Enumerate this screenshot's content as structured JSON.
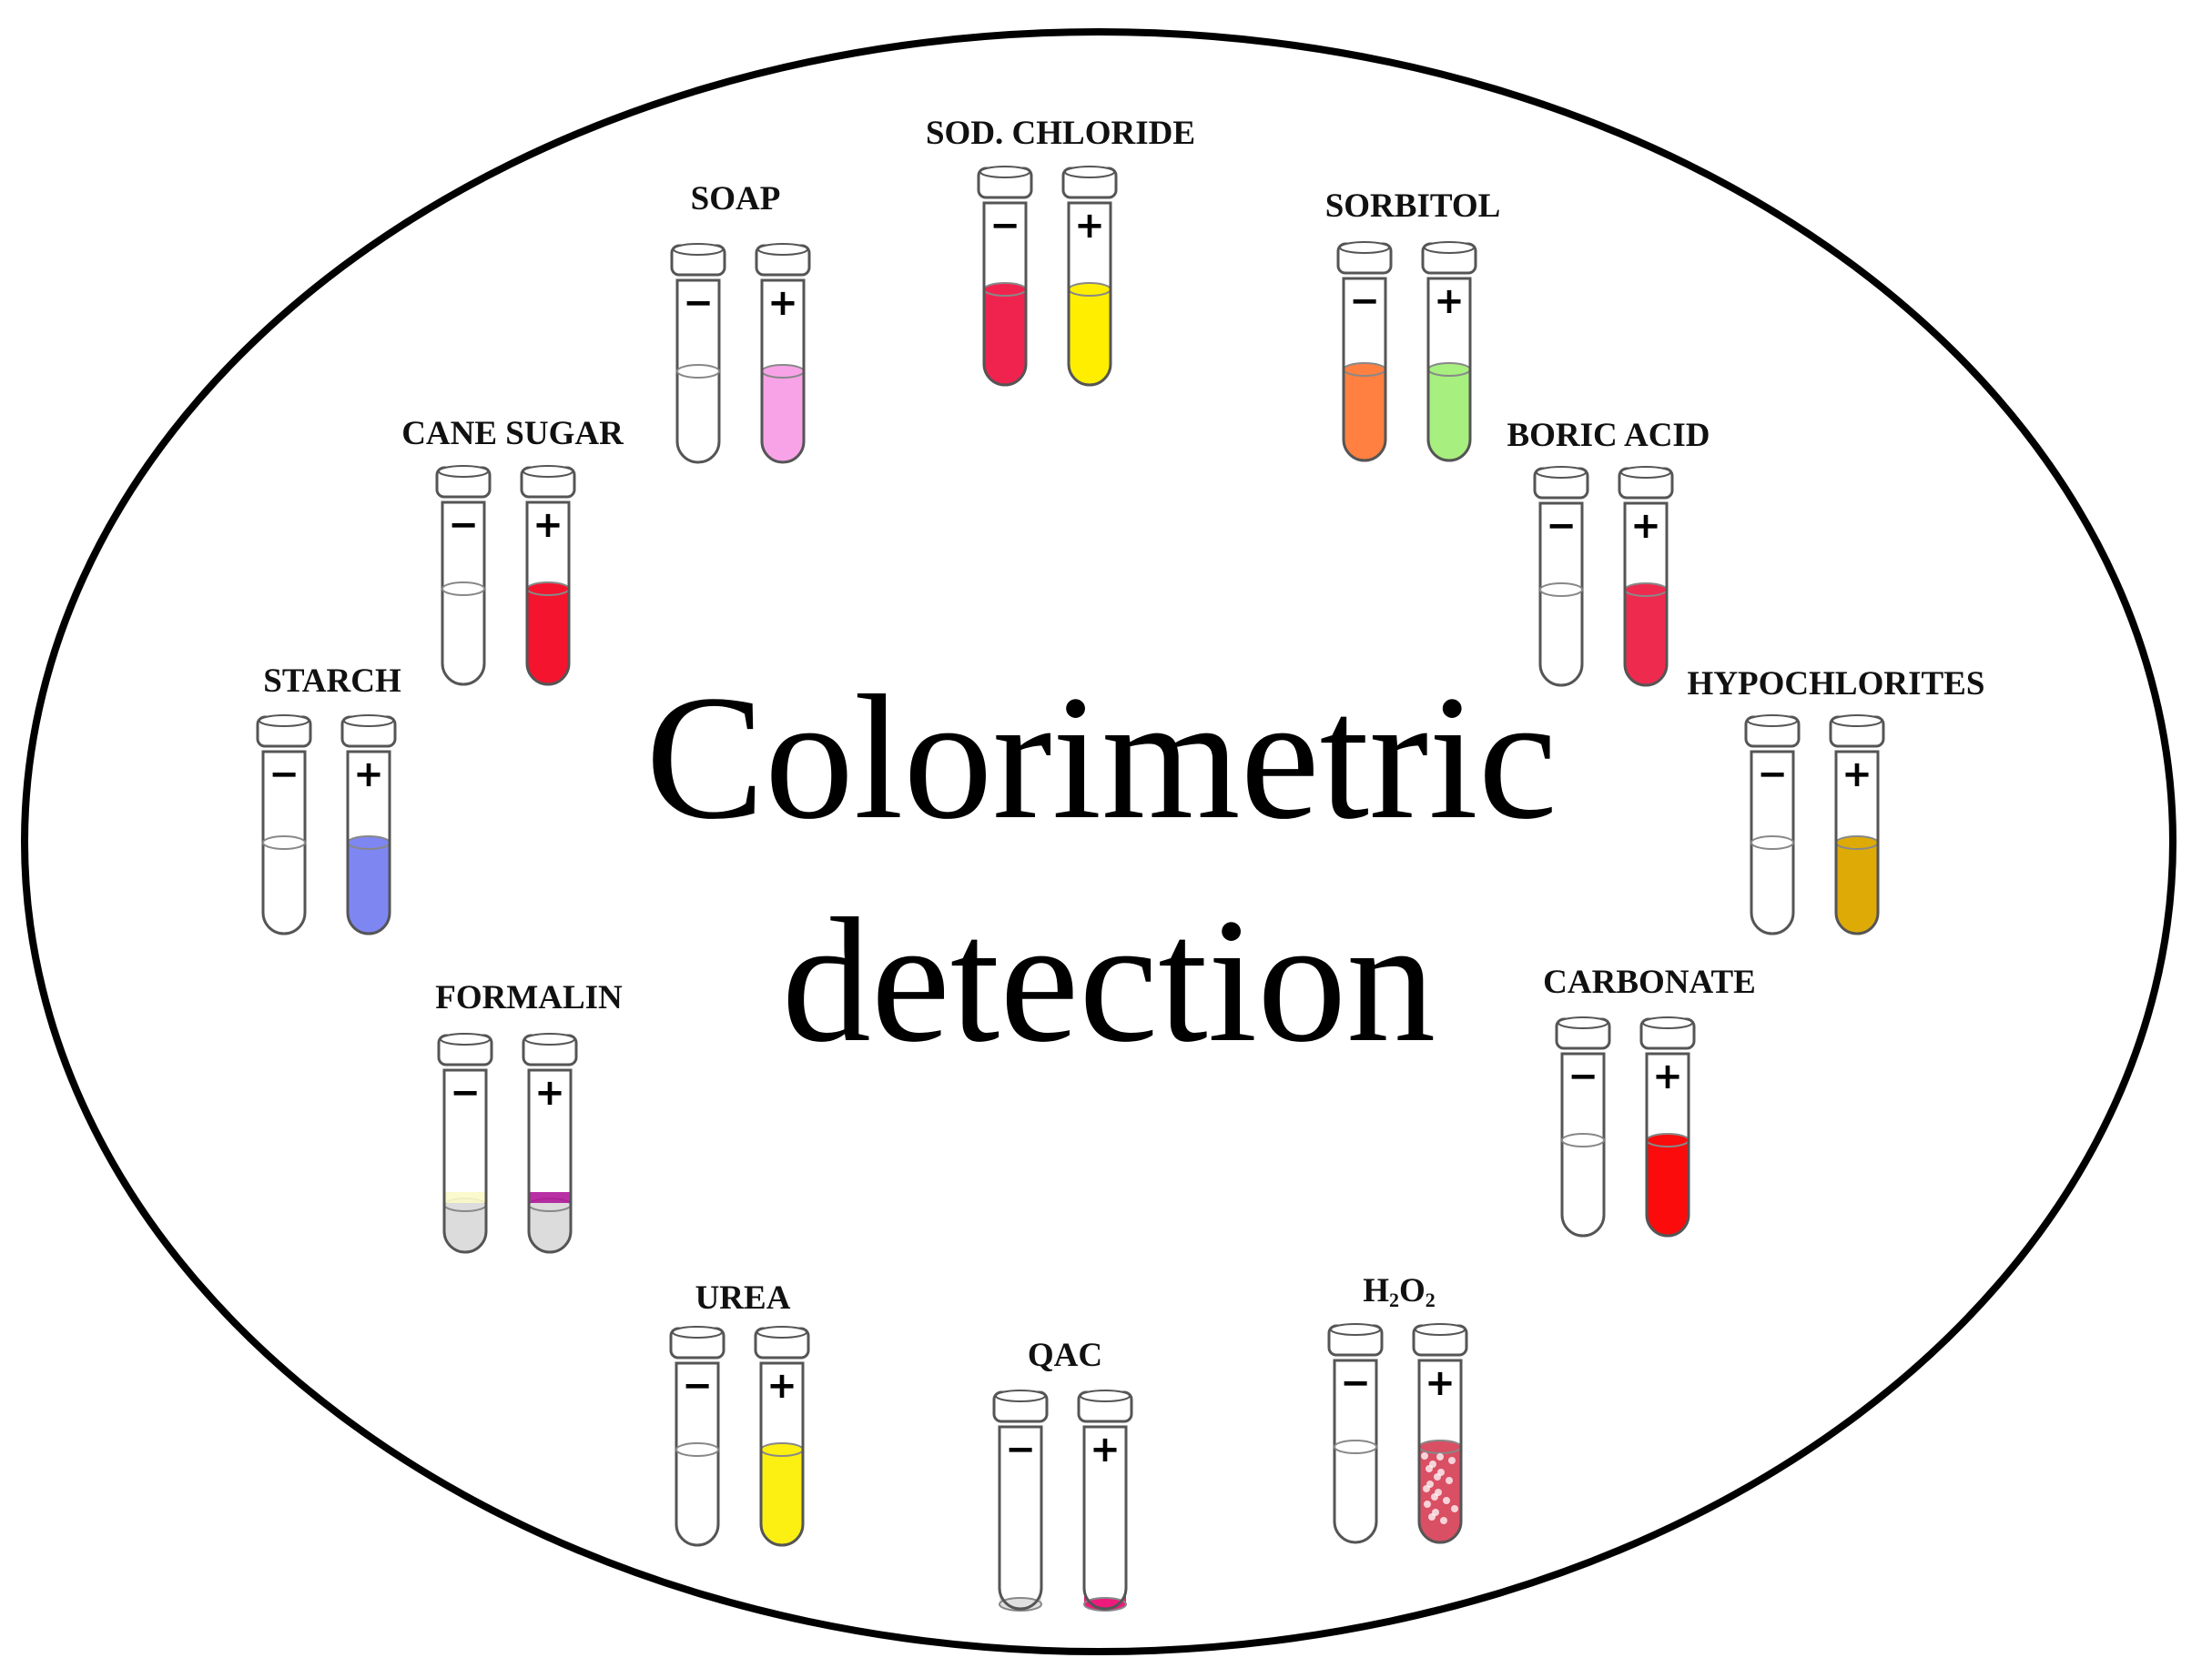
{
  "title": {
    "line1": "Colorimetric",
    "line2": "detection"
  },
  "tests": [
    {
      "id": "sod-chloride",
      "label": "SOD. CHLORIDE",
      "pos_color": "#f0234f",
      "neg_color": "#f0234f",
      "neg_sign": "−",
      "pos_sign": "+",
      "pos_fill_override": "#ffee00"
    },
    {
      "id": "soap",
      "label": "SOAP",
      "neg_color": "#ffffff",
      "pos_color": "#f8a3e8",
      "neg_sign": "−",
      "pos_sign": "+"
    },
    {
      "id": "sorbitol",
      "label": "SORBITOL",
      "neg_color": "#ff8040",
      "pos_color": "#a7ef7f",
      "neg_sign": "−",
      "pos_sign": "+"
    },
    {
      "id": "cane-sugar",
      "label": "CANE SUGAR",
      "neg_color": "#ffffff",
      "pos_color": "#f5142e",
      "neg_sign": "−",
      "pos_sign": "+"
    },
    {
      "id": "boric-acid",
      "label": "BORIC ACID",
      "neg_color": "#ffffff",
      "pos_color": "#ee2a4f",
      "neg_sign": "−",
      "pos_sign": "+"
    },
    {
      "id": "starch",
      "label": "STARCH",
      "neg_color": "#ffffff",
      "pos_color": "#7e86f2",
      "neg_sign": "−",
      "pos_sign": "+"
    },
    {
      "id": "hypochlorites",
      "label": "HYPOCHLORITES",
      "neg_color": "#ffffff",
      "pos_color": "#deab06",
      "neg_sign": "−",
      "pos_sign": "+"
    },
    {
      "id": "formalin",
      "label": "FORMALIN",
      "neg_color": "#dcdcdc",
      "pos_color": "#dcdcdc",
      "neg_sign": "−",
      "pos_sign": "+",
      "neg_ring": "#fafac8",
      "pos_ring": "#b0199a"
    },
    {
      "id": "carbonate",
      "label": "CARBONATE",
      "neg_color": "#ffffff",
      "pos_color": "#fb0b0b",
      "neg_sign": "−",
      "pos_sign": "+"
    },
    {
      "id": "urea",
      "label": "UREA",
      "neg_color": "#ffffff",
      "pos_color": "#fcef12",
      "neg_sign": "−",
      "pos_sign": "+"
    },
    {
      "id": "qac",
      "label": "QAC",
      "neg_color": "#e0e0e0",
      "pos_color": "#ee1b7c",
      "neg_sign": "−",
      "pos_sign": "+"
    },
    {
      "id": "h2o2",
      "label_main": "H",
      "label_sub1": "2",
      "label_mid": "O",
      "label_sub2": "2",
      "neg_color": "#ffffff",
      "pos_color": "#d94f64",
      "neg_sign": "−",
      "pos_sign": "+"
    }
  ],
  "colors": {
    "outline": "#000000",
    "tube_stroke": "#555555"
  }
}
